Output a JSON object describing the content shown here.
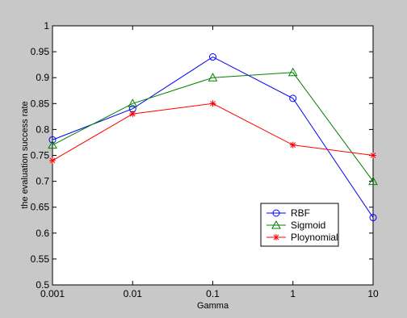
{
  "chart_data": {
    "type": "line",
    "categories": [
      "0.001",
      "0.01",
      "0.1",
      "1",
      "10"
    ],
    "xlabel": "Gamma",
    "ylabel": "the evaluation success rate",
    "ylim": [
      0.5,
      1.0
    ],
    "yticks": [
      "0.5",
      "0.55",
      "0.6",
      "0.65",
      "0.7",
      "0.75",
      "0.8",
      "0.85",
      "0.9",
      "0.95",
      "1"
    ],
    "grid": false,
    "legend_position": "bottom-right",
    "series": [
      {
        "name": "RBF",
        "values": [
          0.78,
          0.84,
          0.94,
          0.86,
          0.63
        ],
        "color": "#0000ff",
        "marker": "circle"
      },
      {
        "name": "Sigmoid",
        "values": [
          0.77,
          0.85,
          0.9,
          0.91,
          0.7
        ],
        "color": "#008000",
        "marker": "triangle"
      },
      {
        "name": "Ploynomial",
        "values": [
          0.74,
          0.83,
          0.85,
          0.77,
          0.75
        ],
        "color": "#ff0000",
        "marker": "star"
      }
    ]
  }
}
